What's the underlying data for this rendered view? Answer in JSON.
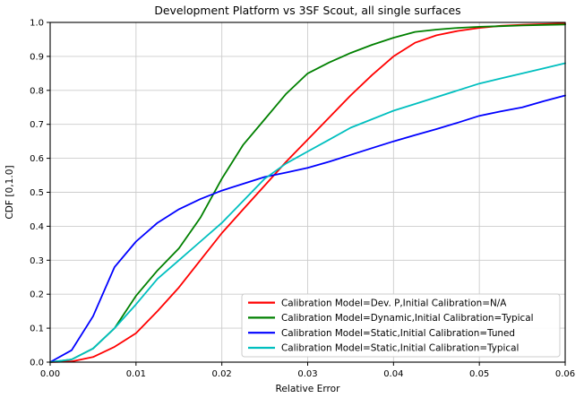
{
  "window": {
    "background": "#ffffff"
  },
  "chart_data": {
    "type": "line",
    "title": "Development Platform vs 3SF Scout, all single surfaces",
    "xlabel": "Relative Error",
    "ylabel": "CDF [0,1.0]",
    "xlim": [
      0.0,
      0.06
    ],
    "ylim": [
      0.0,
      1.0
    ],
    "grid": true,
    "grid_color": "#cccccc",
    "spine_color": "#000000",
    "legend_position": "lower right",
    "x_tick_labels": [
      "0.00",
      "0.01",
      "0.02",
      "0.03",
      "0.04",
      "0.05",
      "0.06"
    ],
    "x_tick_values": [
      0.0,
      0.01,
      0.02,
      0.03,
      0.04,
      0.05,
      0.06
    ],
    "y_tick_labels": [
      "0.0",
      "0.1",
      "0.2",
      "0.3",
      "0.4",
      "0.5",
      "0.6",
      "0.7",
      "0.8",
      "0.9",
      "1.0"
    ],
    "y_tick_values": [
      0.0,
      0.1,
      0.2,
      0.3,
      0.4,
      0.5,
      0.6,
      0.7,
      0.8,
      0.9,
      1.0
    ],
    "x": [
      0.0,
      0.0025,
      0.005,
      0.0075,
      0.01,
      0.0125,
      0.015,
      0.0175,
      0.02,
      0.0225,
      0.025,
      0.0275,
      0.03,
      0.0325,
      0.035,
      0.0375,
      0.04,
      0.0425,
      0.045,
      0.0475,
      0.05,
      0.0525,
      0.055,
      0.0575,
      0.06
    ],
    "series": [
      {
        "name": "Calibration Model=Dev. P,Initial Calibration=N/A",
        "color": "#ff0000",
        "values": [
          0.0,
          0.002,
          0.015,
          0.045,
          0.085,
          0.15,
          0.22,
          0.3,
          0.38,
          0.45,
          0.52,
          0.59,
          0.655,
          0.72,
          0.785,
          0.845,
          0.9,
          0.94,
          0.962,
          0.975,
          0.984,
          0.99,
          0.993,
          0.995,
          0.997
        ]
      },
      {
        "name": "Calibration Model=Dynamic,Initial Calibration=Typical",
        "color": "#008000",
        "values": [
          0.0,
          0.008,
          0.04,
          0.1,
          0.195,
          0.27,
          0.335,
          0.425,
          0.54,
          0.64,
          0.715,
          0.79,
          0.85,
          0.882,
          0.91,
          0.934,
          0.955,
          0.972,
          0.979,
          0.984,
          0.987,
          0.989,
          0.991,
          0.9925,
          0.994
        ]
      },
      {
        "name": "Calibration Model=Static,Initial Calibration=Tuned",
        "color": "#0000ff",
        "values": [
          0.0,
          0.035,
          0.135,
          0.28,
          0.355,
          0.41,
          0.45,
          0.48,
          0.505,
          0.525,
          0.545,
          0.558,
          0.572,
          0.59,
          0.61,
          0.63,
          0.65,
          0.668,
          0.686,
          0.705,
          0.725,
          0.738,
          0.75,
          0.768,
          0.785
        ]
      },
      {
        "name": "Calibration Model=Static,Initial Calibration=Typical",
        "color": "#00bfbf",
        "values": [
          0.0,
          0.008,
          0.04,
          0.1,
          0.17,
          0.245,
          0.3,
          0.355,
          0.41,
          0.475,
          0.54,
          0.585,
          0.62,
          0.655,
          0.69,
          0.715,
          0.74,
          0.76,
          0.78,
          0.8,
          0.82,
          0.835,
          0.85,
          0.865,
          0.88
        ]
      }
    ]
  }
}
